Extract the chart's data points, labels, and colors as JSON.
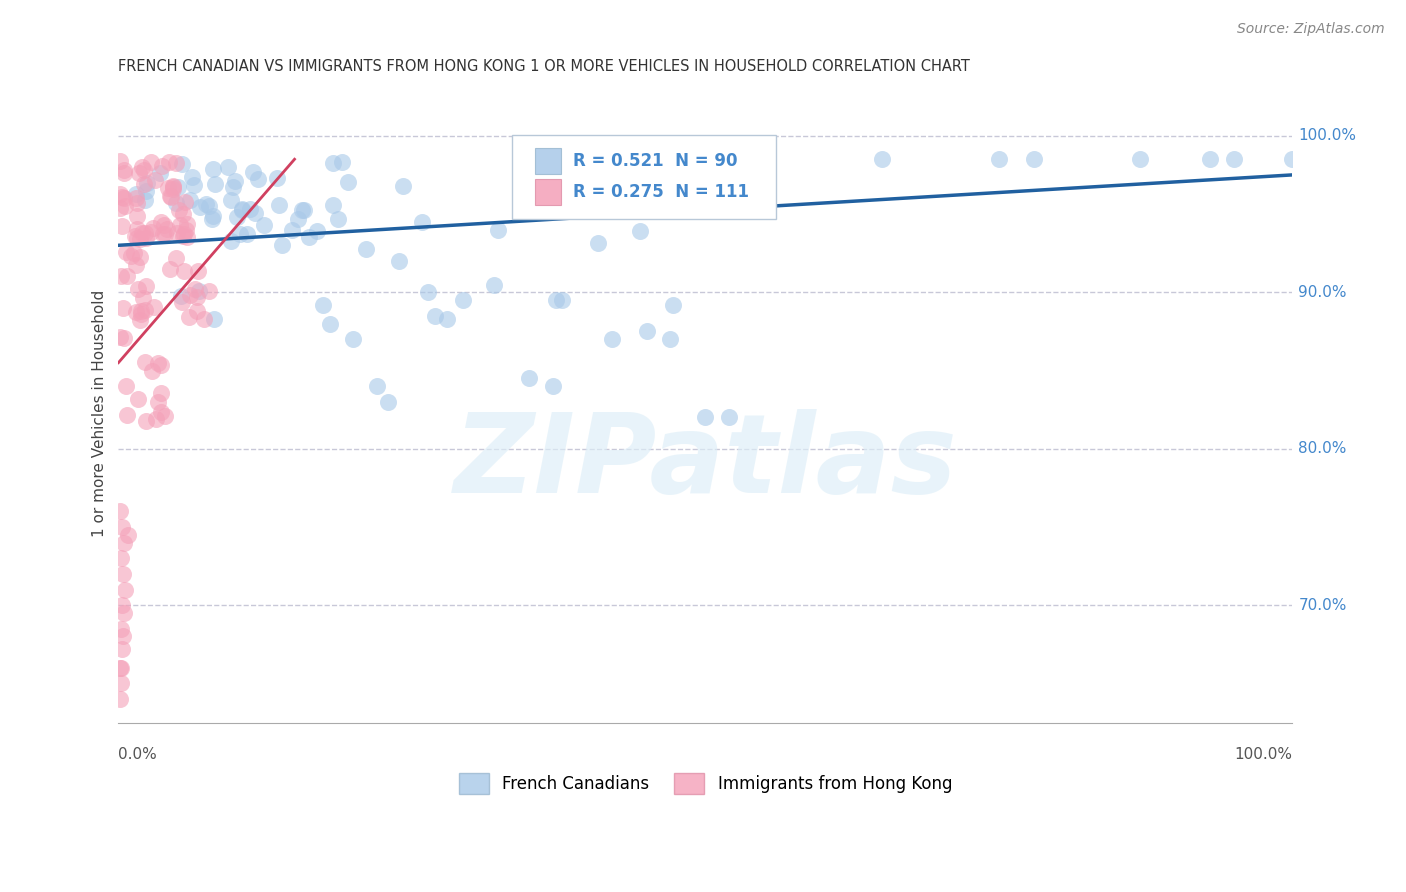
{
  "title": "FRENCH CANADIAN VS IMMIGRANTS FROM HONG KONG 1 OR MORE VEHICLES IN HOUSEHOLD CORRELATION CHART",
  "source": "Source: ZipAtlas.com",
  "ylabel": "1 or more Vehicles in Household",
  "watermark": "ZIPatlas",
  "legend_blue_label": "French Canadians",
  "legend_pink_label": "Immigrants from Hong Kong",
  "R_blue": 0.521,
  "N_blue": 90,
  "R_pink": 0.275,
  "N_pink": 111,
  "blue_color": "#a8c8e8",
  "pink_color": "#f4a0b8",
  "blue_line_color": "#2060a0",
  "pink_line_color": "#d04060",
  "grid_color": "#c8c8d8",
  "right_label_color": "#4488cc",
  "title_color": "#333333",
  "xmin": 0.0,
  "xmax": 1.0,
  "ymin": 0.625,
  "ymax": 1.02,
  "yticks": [
    0.7,
    0.8,
    0.9,
    1.0
  ],
  "ytick_labels": [
    "70.0%",
    "80.0%",
    "90.0%",
    "100.0%"
  ],
  "blue_trend_x": [
    0.0,
    1.0
  ],
  "blue_trend_y": [
    0.93,
    0.975
  ],
  "pink_trend_x": [
    0.0,
    0.15
  ],
  "pink_trend_y": [
    0.855,
    0.985
  ]
}
